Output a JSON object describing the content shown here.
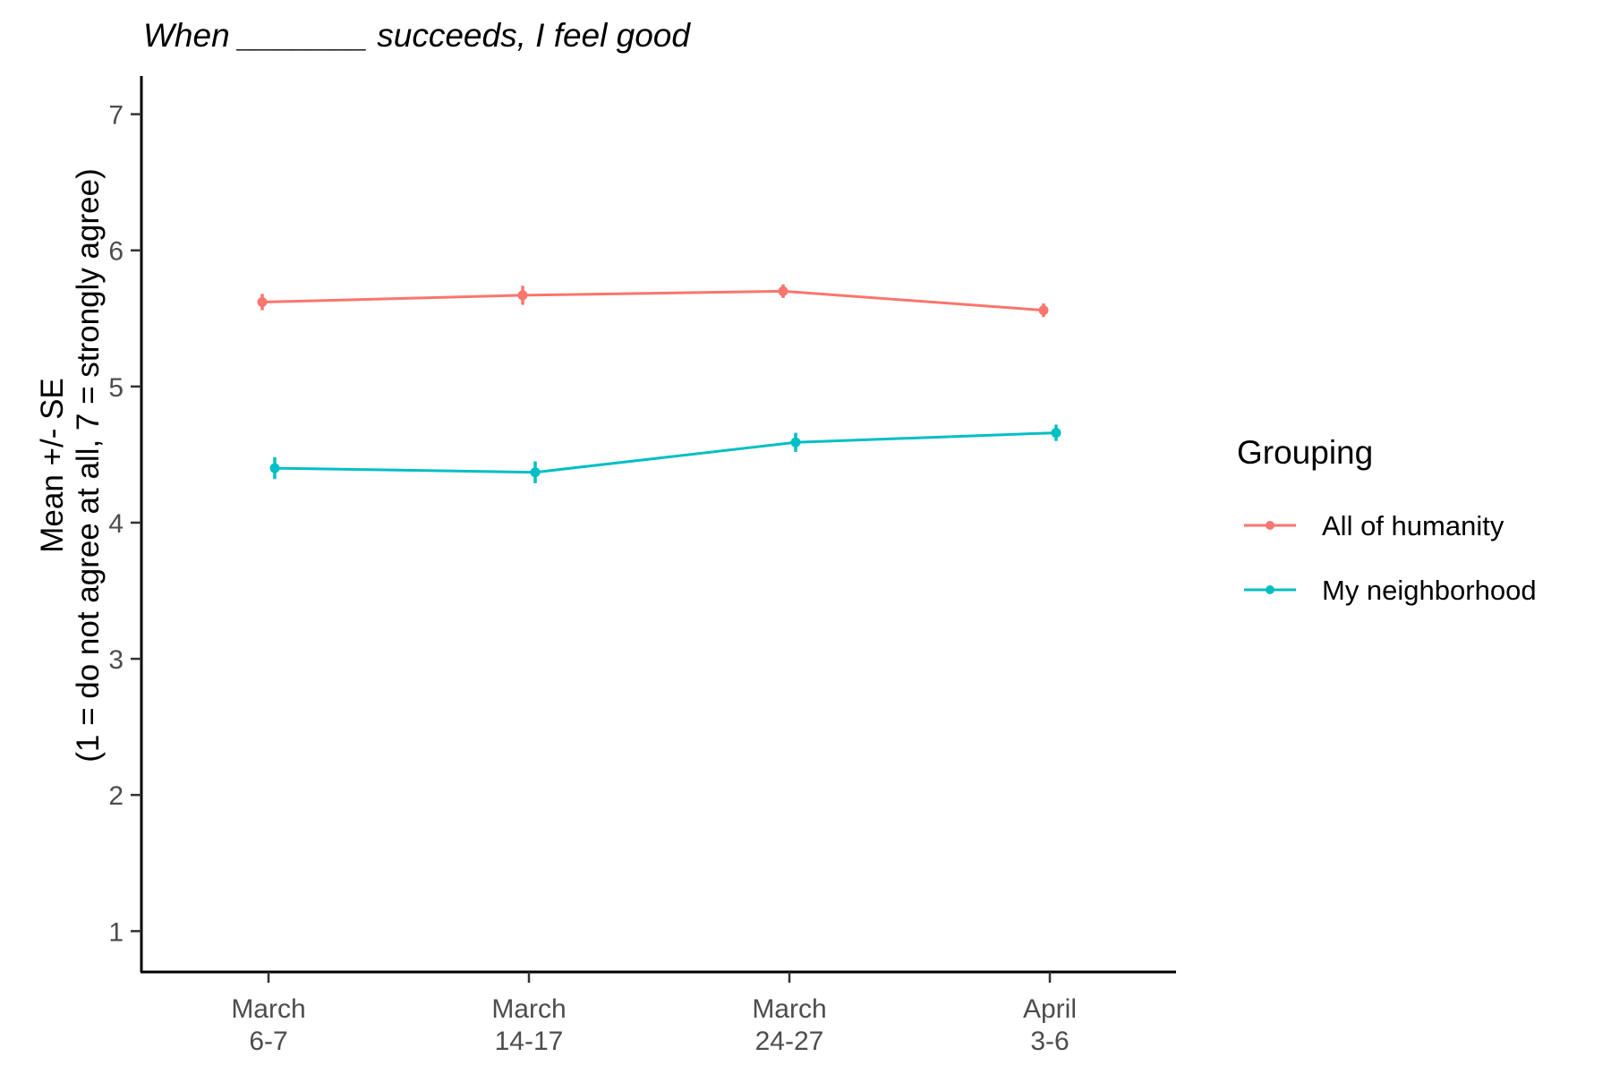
{
  "chart_data": {
    "type": "line",
    "title": "When _______ succeeds, I feel good",
    "xlabel": "",
    "ylabel_lines": [
      "Mean +/- SE",
      "(1 = do not agree at all, 7 = strongly agree)"
    ],
    "categories": [
      [
        "March",
        "6-7"
      ],
      [
        "March",
        "14-17"
      ],
      [
        "March",
        "24-27"
      ],
      [
        "April",
        "3-6"
      ]
    ],
    "ylim": [
      0.7,
      7.28
    ],
    "yticks": [
      1,
      2,
      3,
      4,
      5,
      6,
      7
    ],
    "grid": false,
    "legend": {
      "title": "Grouping",
      "position": "right"
    },
    "series": [
      {
        "name": "All of humanity",
        "color": "#F8766D",
        "values": [
          5.62,
          5.67,
          5.7,
          5.56
        ],
        "se": [
          0.06,
          0.07,
          0.05,
          0.05
        ]
      },
      {
        "name": "My neighborhood",
        "color": "#00BFC4",
        "values": [
          4.4,
          4.37,
          4.59,
          4.66
        ],
        "se": [
          0.08,
          0.08,
          0.07,
          0.06
        ]
      }
    ]
  }
}
